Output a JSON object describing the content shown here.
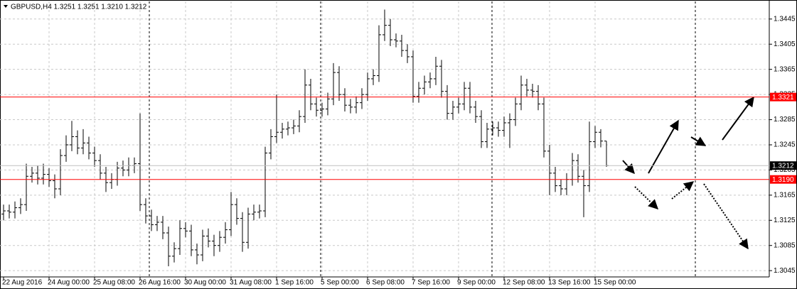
{
  "chart_data": {
    "type": "ohlc",
    "title": "GBPUSD,H4  1.3251 1.3251 1.3210 1.3212",
    "categories": [
      "22 Aug 2016",
      null,
      null,
      null,
      null,
      null,
      null,
      null,
      "24 Aug 00:00",
      null,
      null,
      null,
      null,
      null,
      null,
      null,
      "25 Aug 08:00",
      null,
      null,
      null,
      null,
      null,
      null,
      null,
      "26 Aug 16:00",
      null,
      null,
      null,
      null,
      null,
      null,
      null,
      "30 Aug 00:00",
      null,
      null,
      null,
      null,
      null,
      null,
      null,
      "31 Aug 08:00",
      null,
      null,
      null,
      null,
      null,
      null,
      null,
      "1 Sep 16:00",
      null,
      null,
      null,
      null,
      null,
      null,
      null,
      "5 Sep 00:00",
      null,
      null,
      null,
      null,
      null,
      null,
      null,
      "6 Sep 08:00",
      null,
      null,
      null,
      null,
      null,
      null,
      null,
      "7 Sep 16:00",
      null,
      null,
      null,
      null,
      null,
      null,
      null,
      "9 Sep 00:00",
      null,
      null,
      null,
      null,
      null,
      null,
      null,
      "12 Sep 08:00",
      null,
      null,
      null,
      null,
      null,
      null,
      null,
      "13 Sep 16:00",
      null,
      null,
      null,
      null,
      null,
      null,
      null,
      "15 Sep 00:00",
      null,
      null
    ],
    "open": [
      1.3135,
      1.314,
      1.3138,
      1.3145,
      1.315,
      1.3195,
      1.32,
      1.3192,
      1.3198,
      1.3188,
      1.3175,
      1.3228,
      1.3245,
      1.3258,
      1.324,
      1.3248,
      1.3232,
      1.322,
      1.32,
      1.3185,
      1.319,
      1.3208,
      1.3205,
      1.3212,
      1.3215,
      1.315,
      1.3132,
      1.3118,
      1.3122,
      1.3105,
      1.3068,
      1.308,
      1.3112,
      1.3108,
      1.3078,
      1.307,
      1.31,
      1.3092,
      1.3085,
      1.3098,
      1.311,
      1.315,
      1.3128,
      1.309,
      1.3135,
      1.3138,
      1.314,
      1.3232,
      1.3258,
      1.3265,
      1.327,
      1.3272,
      1.3275,
      1.329,
      1.334,
      1.331,
      1.33,
      1.3302,
      1.3318,
      1.336,
      1.3325,
      1.3308,
      1.3305,
      1.3312,
      1.3325,
      1.335,
      1.3355,
      1.342,
      1.3435,
      1.3412,
      1.341,
      1.3395,
      1.3385,
      1.3322,
      1.3335,
      1.3345,
      1.335,
      1.337,
      1.333,
      1.3295,
      1.3305,
      1.331,
      1.3335,
      1.3305,
      1.329,
      1.325,
      1.327,
      1.3272,
      1.3268,
      1.328,
      1.3285,
      1.331,
      1.334,
      1.3332,
      1.333,
      1.331,
      1.3235,
      1.32,
      1.318,
      1.3175,
      1.319,
      1.322,
      1.3195,
      1.318,
      1.325,
      1.3265,
      1.3251
    ],
    "high": [
      1.315,
      1.315,
      1.3155,
      1.316,
      1.3215,
      1.321,
      1.3212,
      1.3215,
      1.3208,
      1.3198,
      1.3238,
      1.326,
      1.3283,
      1.3268,
      1.327,
      1.3258,
      1.3242,
      1.323,
      1.321,
      1.32,
      1.3218,
      1.322,
      1.3225,
      1.3225,
      1.3295,
      1.316,
      1.3142,
      1.3132,
      1.3132,
      1.3115,
      1.309,
      1.3125,
      1.3122,
      1.3118,
      1.3088,
      1.311,
      1.3112,
      1.3102,
      1.3108,
      1.3122,
      1.317,
      1.316,
      1.3138,
      1.3145,
      1.315,
      1.315,
      1.3242,
      1.327,
      1.3325,
      1.328,
      1.3282,
      1.3285,
      1.33,
      1.3365,
      1.335,
      1.332,
      1.3312,
      1.3328,
      1.3375,
      1.337,
      1.3335,
      1.3318,
      1.3322,
      1.3335,
      1.336,
      1.3365,
      1.3435,
      1.346,
      1.3445,
      1.3422,
      1.342,
      1.3405,
      1.3395,
      1.3345,
      1.3355,
      1.336,
      1.3385,
      1.338,
      1.334,
      1.3315,
      1.332,
      1.3345,
      1.3345,
      1.3315,
      1.33,
      1.328,
      1.3282,
      1.3282,
      1.329,
      1.3295,
      1.332,
      1.3355,
      1.335,
      1.3342,
      1.334,
      1.332,
      1.3245,
      1.321,
      1.319,
      1.32,
      1.3232,
      1.323,
      1.3205,
      1.3282,
      1.3275,
      1.327,
      1.3251
    ],
    "low": [
      1.3125,
      1.3128,
      1.3128,
      1.3135,
      1.314,
      1.3185,
      1.3182,
      1.3182,
      1.3178,
      1.316,
      1.3165,
      1.3218,
      1.3235,
      1.323,
      1.323,
      1.3222,
      1.321,
      1.319,
      1.317,
      1.3175,
      1.318,
      1.3195,
      1.3195,
      1.32,
      1.314,
      1.312,
      1.3108,
      1.3108,
      1.3095,
      1.3052,
      1.3058,
      1.307,
      1.3098,
      1.3068,
      1.3055,
      1.306,
      1.3082,
      1.3068,
      1.3075,
      1.3088,
      1.31,
      1.3118,
      1.3075,
      1.308,
      1.3125,
      1.3128,
      1.313,
      1.3222,
      1.3248,
      1.3255,
      1.326,
      1.3262,
      1.3265,
      1.328,
      1.33,
      1.329,
      1.329,
      1.3292,
      1.3308,
      1.3315,
      1.3298,
      1.3295,
      1.3295,
      1.3302,
      1.3315,
      1.334,
      1.3345,
      1.341,
      1.3402,
      1.34,
      1.3385,
      1.3375,
      1.3312,
      1.3312,
      1.3325,
      1.3335,
      1.334,
      1.332,
      1.3285,
      1.3285,
      1.3295,
      1.33,
      1.3295,
      1.328,
      1.324,
      1.324,
      1.326,
      1.3258,
      1.3258,
      1.324,
      1.3275,
      1.33,
      1.3322,
      1.332,
      1.33,
      1.3225,
      1.3165,
      1.317,
      1.3165,
      1.3165,
      1.318,
      1.3185,
      1.313,
      1.317,
      1.324,
      1.3241,
      1.321
    ],
    "close": [
      1.314,
      1.3138,
      1.3145,
      1.315,
      1.3195,
      1.32,
      1.3192,
      1.3198,
      1.3188,
      1.3175,
      1.3228,
      1.3245,
      1.3258,
      1.324,
      1.3248,
      1.3232,
      1.322,
      1.32,
      1.3185,
      1.319,
      1.3208,
      1.3205,
      1.3212,
      1.3215,
      1.315,
      1.3132,
      1.3118,
      1.3122,
      1.3105,
      1.3068,
      1.308,
      1.3112,
      1.3108,
      1.3078,
      1.307,
      1.31,
      1.3092,
      1.3085,
      1.3098,
      1.311,
      1.315,
      1.3128,
      1.309,
      1.3135,
      1.3138,
      1.314,
      1.3232,
      1.3258,
      1.3265,
      1.327,
      1.3272,
      1.3275,
      1.329,
      1.334,
      1.331,
      1.33,
      1.3302,
      1.3318,
      1.336,
      1.3325,
      1.3308,
      1.3305,
      1.3312,
      1.3325,
      1.335,
      1.3355,
      1.342,
      1.3435,
      1.3412,
      1.341,
      1.3395,
      1.3385,
      1.3322,
      1.3335,
      1.3345,
      1.335,
      1.337,
      1.333,
      1.3295,
      1.3305,
      1.331,
      1.3335,
      1.3305,
      1.329,
      1.325,
      1.327,
      1.3272,
      1.3268,
      1.328,
      1.3285,
      1.331,
      1.334,
      1.3332,
      1.333,
      1.331,
      1.3235,
      1.32,
      1.318,
      1.3175,
      1.319,
      1.322,
      1.3195,
      1.318,
      1.325,
      1.3265,
      1.3251,
      1.3212
    ],
    "color": "#000000",
    "ylim": [
      1.3035,
      1.3473
    ],
    "yticks": [
      1.3045,
      1.3085,
      1.3125,
      1.3165,
      1.3205,
      1.3245,
      1.3285,
      1.3325,
      1.3365,
      1.3405,
      1.3445
    ],
    "grid": true,
    "hlines": [
      {
        "value": 1.3321,
        "color": "#ff0000",
        "label_bg": "#ff0000"
      },
      {
        "value": 1.3212,
        "color": "#c0c0c0",
        "label_bg": "#000000"
      },
      {
        "value": 1.319,
        "label": "1.3190",
        "color": "#ff0000",
        "label_bg": "#ff0000"
      }
    ]
  }
}
